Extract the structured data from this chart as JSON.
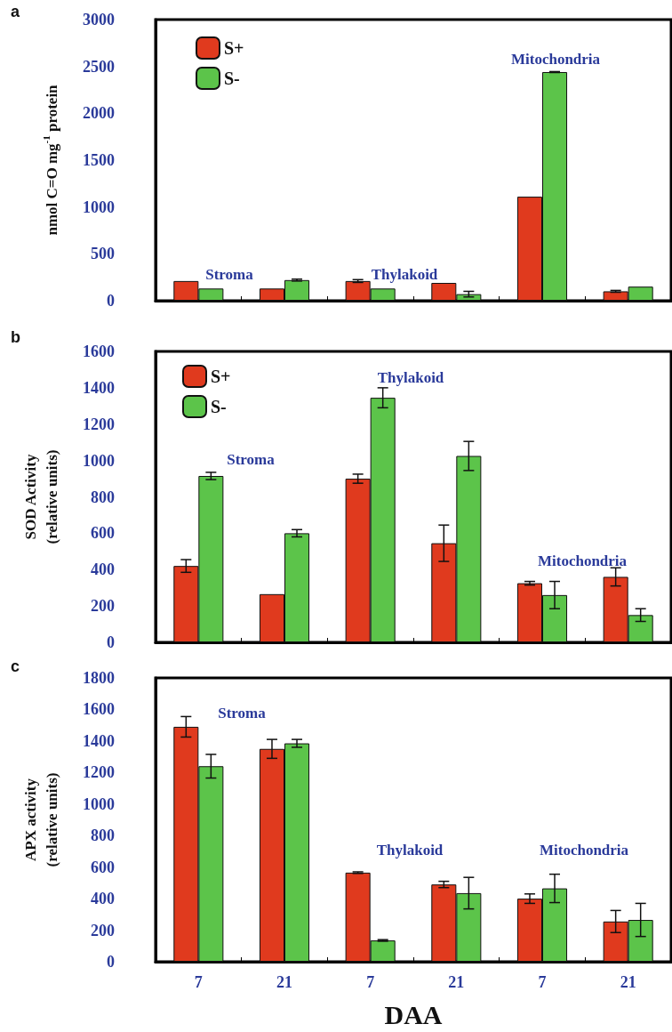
{
  "chart_data": [
    {
      "type": "bar",
      "ylabel": "nmol C=O mg$^{-1}$ protein",
      "annotations": [
        "a",
        "Stroma",
        "Thylakoid",
        "Mitochondria"
      ],
      "categories": [
        "7",
        "21",
        "7",
        "21",
        "7",
        "21"
      ],
      "ylim": [
        0,
        3000
      ],
      "yticks": [
        0,
        500,
        1000,
        1500,
        2000,
        2500,
        3000
      ],
      "tick_labels": "y",
      "legend": "top left",
      "grid": false,
      "series": [
        {
          "name": "S+",
          "color": "#e03a1e",
          "values": [
            210,
            130,
            210,
            190,
            1110,
            100
          ],
          "errors": [
            null,
            null,
            15,
            null,
            null,
            10
          ]
        },
        {
          "name": "S-",
          "color": "#5cc44a",
          "values": [
            130,
            220,
            130,
            70,
            2440,
            150
          ],
          "errors": [
            null,
            10,
            null,
            30,
            5,
            null
          ]
        }
      ]
    },
    {
      "type": "bar",
      "ylabel": "SOD Activity\n(relative units)",
      "annotations": [
        "b",
        "Stroma",
        "Thylakoid",
        "Mitochondria"
      ],
      "categories": [
        "7",
        "21",
        "7",
        "21",
        "7",
        "21"
      ],
      "ylim": [
        0,
        1600
      ],
      "yticks": [
        0,
        200,
        400,
        600,
        800,
        1000,
        1200,
        1400,
        1600
      ],
      "tick_labels": "y",
      "legend": "top left",
      "grid": false,
      "series": [
        {
          "name": "S+",
          "color": "#e03a1e",
          "values": [
            420,
            265,
            900,
            545,
            325,
            360
          ],
          "errors": [
            35,
            null,
            25,
            100,
            10,
            50
          ]
        },
        {
          "name": "S-",
          "color": "#5cc44a",
          "values": [
            915,
            600,
            1345,
            1025,
            260,
            150
          ],
          "errors": [
            20,
            20,
            55,
            80,
            75,
            35
          ]
        }
      ]
    },
    {
      "type": "bar",
      "ylabel": "APX activity\n(relative units)",
      "xlabel": "DAA",
      "annotations": [
        "c",
        "Stroma",
        "Thylakoid",
        "Mitochondria"
      ],
      "categories": [
        "7",
        "21",
        "7",
        "21",
        "7",
        "21"
      ],
      "ylim": [
        0,
        1800
      ],
      "yticks": [
        0,
        200,
        400,
        600,
        800,
        1000,
        1200,
        1400,
        1600,
        1800
      ],
      "grid": false,
      "series": [
        {
          "color": "#e03a1e",
          "values": [
            1490,
            1350,
            565,
            490,
            400,
            255
          ],
          "errors": [
            65,
            60,
            5,
            20,
            30,
            70
          ]
        },
        {
          "color": "#5cc44a",
          "values": [
            1240,
            1385,
            135,
            435,
            465,
            265
          ],
          "errors": [
            75,
            25,
            5,
            100,
            90,
            105
          ]
        }
      ]
    }
  ]
}
